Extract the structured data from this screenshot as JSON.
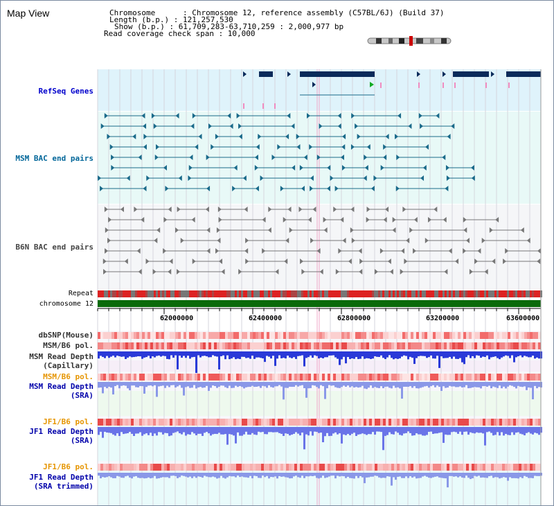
{
  "page": {
    "title": "Map View"
  },
  "header": {
    "chromosome_label": "Chromosome      : Chromosome 12, reference assembly (C57BL/6J) (Build 37)",
    "length_label": "Length (b.p.) : 121,257,530",
    "show_label": "Show (b.p.) : 61,709,283-63,710,259 : 2,000,977 bp",
    "span_label": "Read coverage check span : 10,000"
  },
  "tracks": {
    "refseq": "RefSeq Genes",
    "msm_bac": "MSM BAC end pairs",
    "b6n_bac": "B6N BAC end pairs",
    "repeat": "Repeat",
    "chromosome": "chromosome 12",
    "dbsnp": "dbSNP(Mouse)",
    "msm_b6_pol_1": "MSM/B6 pol.",
    "msm_depth_cap_1": "MSM Read Depth",
    "msm_depth_cap_2": "(Capillary)",
    "msm_b6_pol_2": "MSM/B6 pol.",
    "msm_depth_sra_1": "MSM Read Depth",
    "msm_depth_sra_2": "(SRA)",
    "jf1_b6_pol_1": "JF1/B6 pol.",
    "jf1_depth_sra_1": "JF1 Read Depth",
    "jf1_depth_sra_2": "(SRA)",
    "jf1_b6_pol_2": "JF1/B6 pol.",
    "jf1_depth_trim_1": "JF1 Read Depth",
    "jf1_depth_trim_2": "(SRA trimmed)"
  },
  "axis": {
    "ticks": [
      "62000000",
      "62400000",
      "62800000",
      "63200000",
      "63600000"
    ]
  },
  "colors": {
    "refseq_label": "#0000cc",
    "msm_label": "#006699",
    "b6n_label": "#333333",
    "pol_label": "#e69500",
    "depth_label": "#0000aa",
    "gene_fill": "#0a2a5a",
    "chromosome_bar": "#006600"
  }
}
